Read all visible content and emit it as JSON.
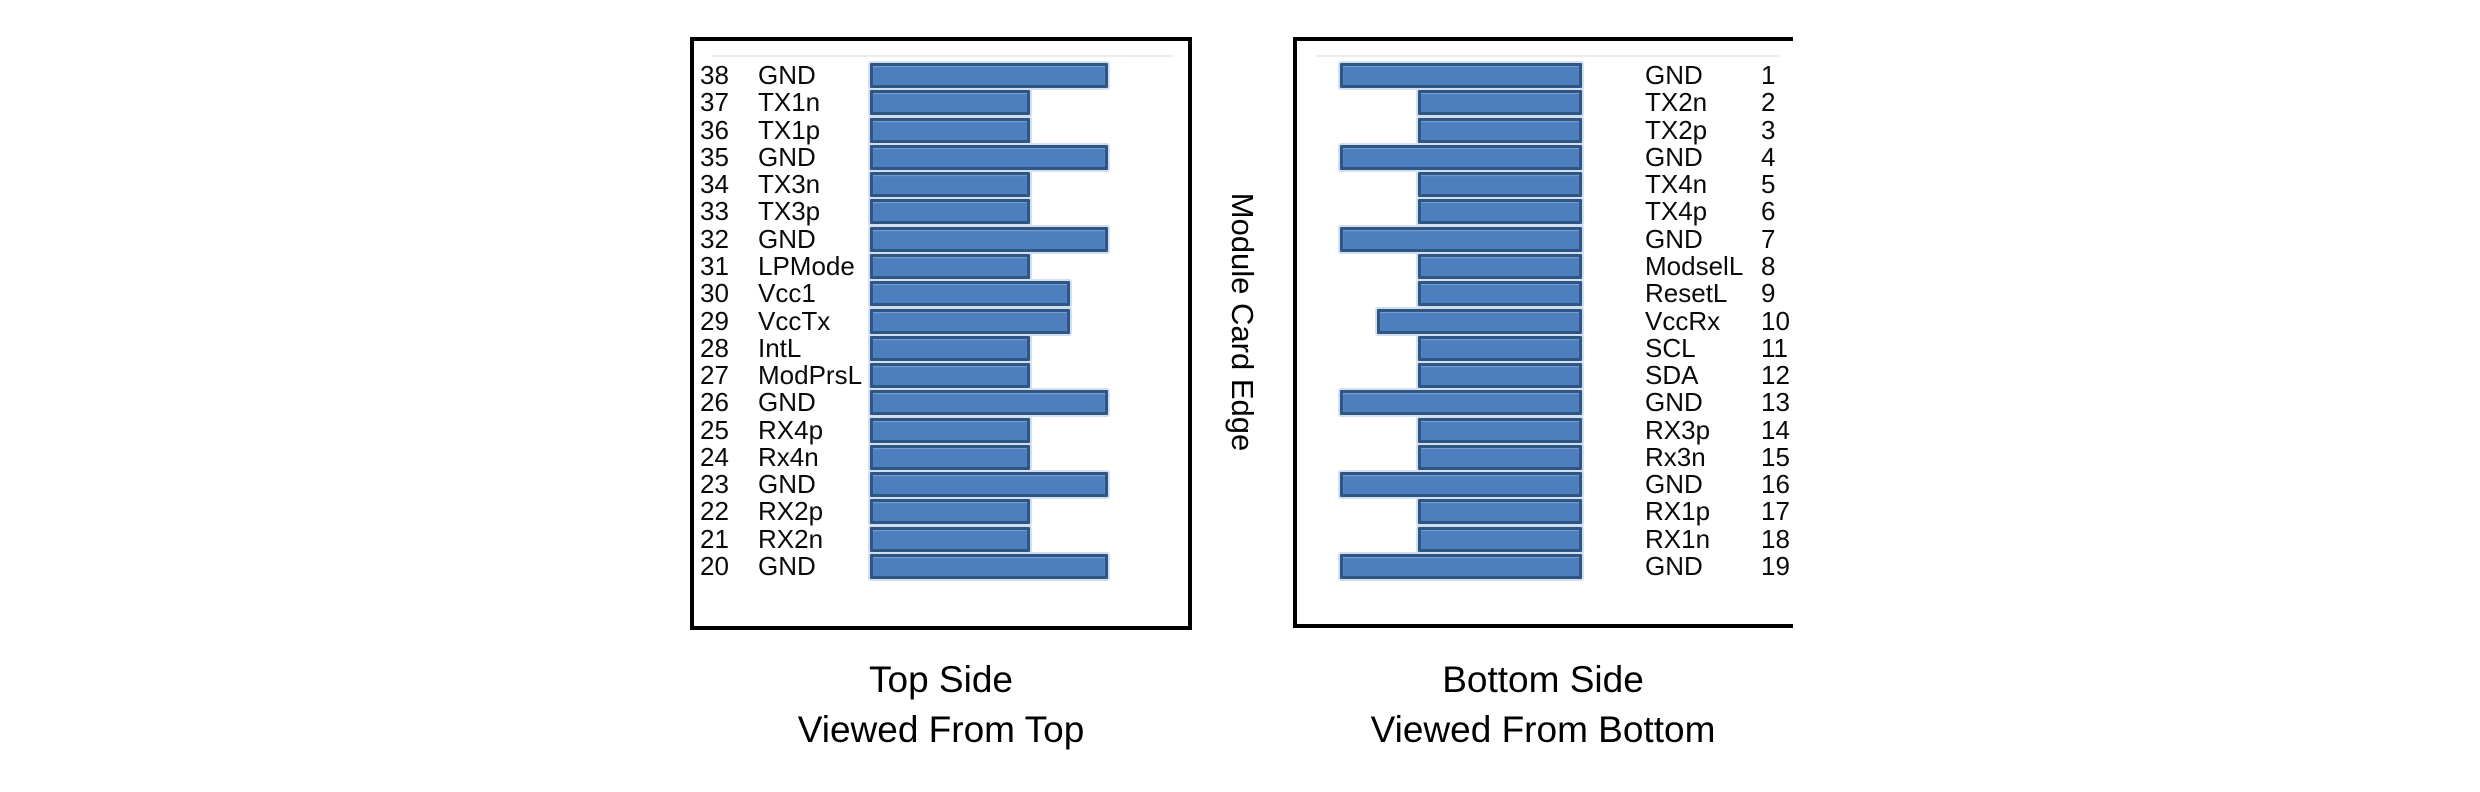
{
  "figure": {
    "middle_label": "Module Card Edge",
    "colors": {
      "bar_fill": "#4d7fbe",
      "bar_border": "#2e5684",
      "bar_halo": "#d3dfef",
      "box_border": "#000000"
    },
    "left_panel": {
      "caption_line1": "Top Side",
      "caption_line2": "Viewed From Top",
      "pins": [
        {
          "num": "38",
          "name": "GND",
          "size": "long"
        },
        {
          "num": "37",
          "name": "TX1n",
          "size": "short"
        },
        {
          "num": "36",
          "name": "TX1p",
          "size": "short"
        },
        {
          "num": "35",
          "name": "GND",
          "size": "long"
        },
        {
          "num": "34",
          "name": "TX3n",
          "size": "short"
        },
        {
          "num": "33",
          "name": "TX3p",
          "size": "short"
        },
        {
          "num": "32",
          "name": "GND",
          "size": "long"
        },
        {
          "num": "31",
          "name": "LPMode",
          "size": "short"
        },
        {
          "num": "30",
          "name": "Vcc1",
          "size": "medium"
        },
        {
          "num": "29",
          "name": "VccTx",
          "size": "medium"
        },
        {
          "num": "28",
          "name": "IntL",
          "size": "short"
        },
        {
          "num": "27",
          "name": "ModPrsL",
          "size": "short"
        },
        {
          "num": "26",
          "name": "GND",
          "size": "long"
        },
        {
          "num": "25",
          "name": "RX4p",
          "size": "short"
        },
        {
          "num": "24",
          "name": "Rx4n",
          "size": "short"
        },
        {
          "num": "23",
          "name": "GND",
          "size": "long"
        },
        {
          "num": "22",
          "name": "RX2p",
          "size": "short"
        },
        {
          "num": "21",
          "name": "RX2n",
          "size": "short"
        },
        {
          "num": "20",
          "name": "GND",
          "size": "long"
        }
      ]
    },
    "right_panel": {
      "caption_line1": "Bottom Side",
      "caption_line2": "Viewed From Bottom",
      "pins": [
        {
          "num": "1",
          "name": "GND",
          "size": "long"
        },
        {
          "num": "2",
          "name": "TX2n",
          "size": "short"
        },
        {
          "num": "3",
          "name": "TX2p",
          "size": "short"
        },
        {
          "num": "4",
          "name": "GND",
          "size": "long"
        },
        {
          "num": "5",
          "name": "TX4n",
          "size": "short"
        },
        {
          "num": "6",
          "name": "TX4p",
          "size": "short"
        },
        {
          "num": "7",
          "name": "GND",
          "size": "long"
        },
        {
          "num": "8",
          "name": "ModselL",
          "size": "short"
        },
        {
          "num": "9",
          "name": "ResetL",
          "size": "short"
        },
        {
          "num": "10",
          "name": "VccRx",
          "size": "medium"
        },
        {
          "num": "11",
          "name": "SCL",
          "size": "short"
        },
        {
          "num": "12",
          "name": "SDA",
          "size": "short"
        },
        {
          "num": "13",
          "name": "GND",
          "size": "long"
        },
        {
          "num": "14",
          "name": "RX3p",
          "size": "short"
        },
        {
          "num": "15",
          "name": "Rx3n",
          "size": "short"
        },
        {
          "num": "16",
          "name": "GND",
          "size": "long"
        },
        {
          "num": "17",
          "name": "RX1p",
          "size": "short"
        },
        {
          "num": "18",
          "name": "RX1n",
          "size": "short"
        },
        {
          "num": "19",
          "name": "GND",
          "size": "long"
        }
      ]
    }
  }
}
